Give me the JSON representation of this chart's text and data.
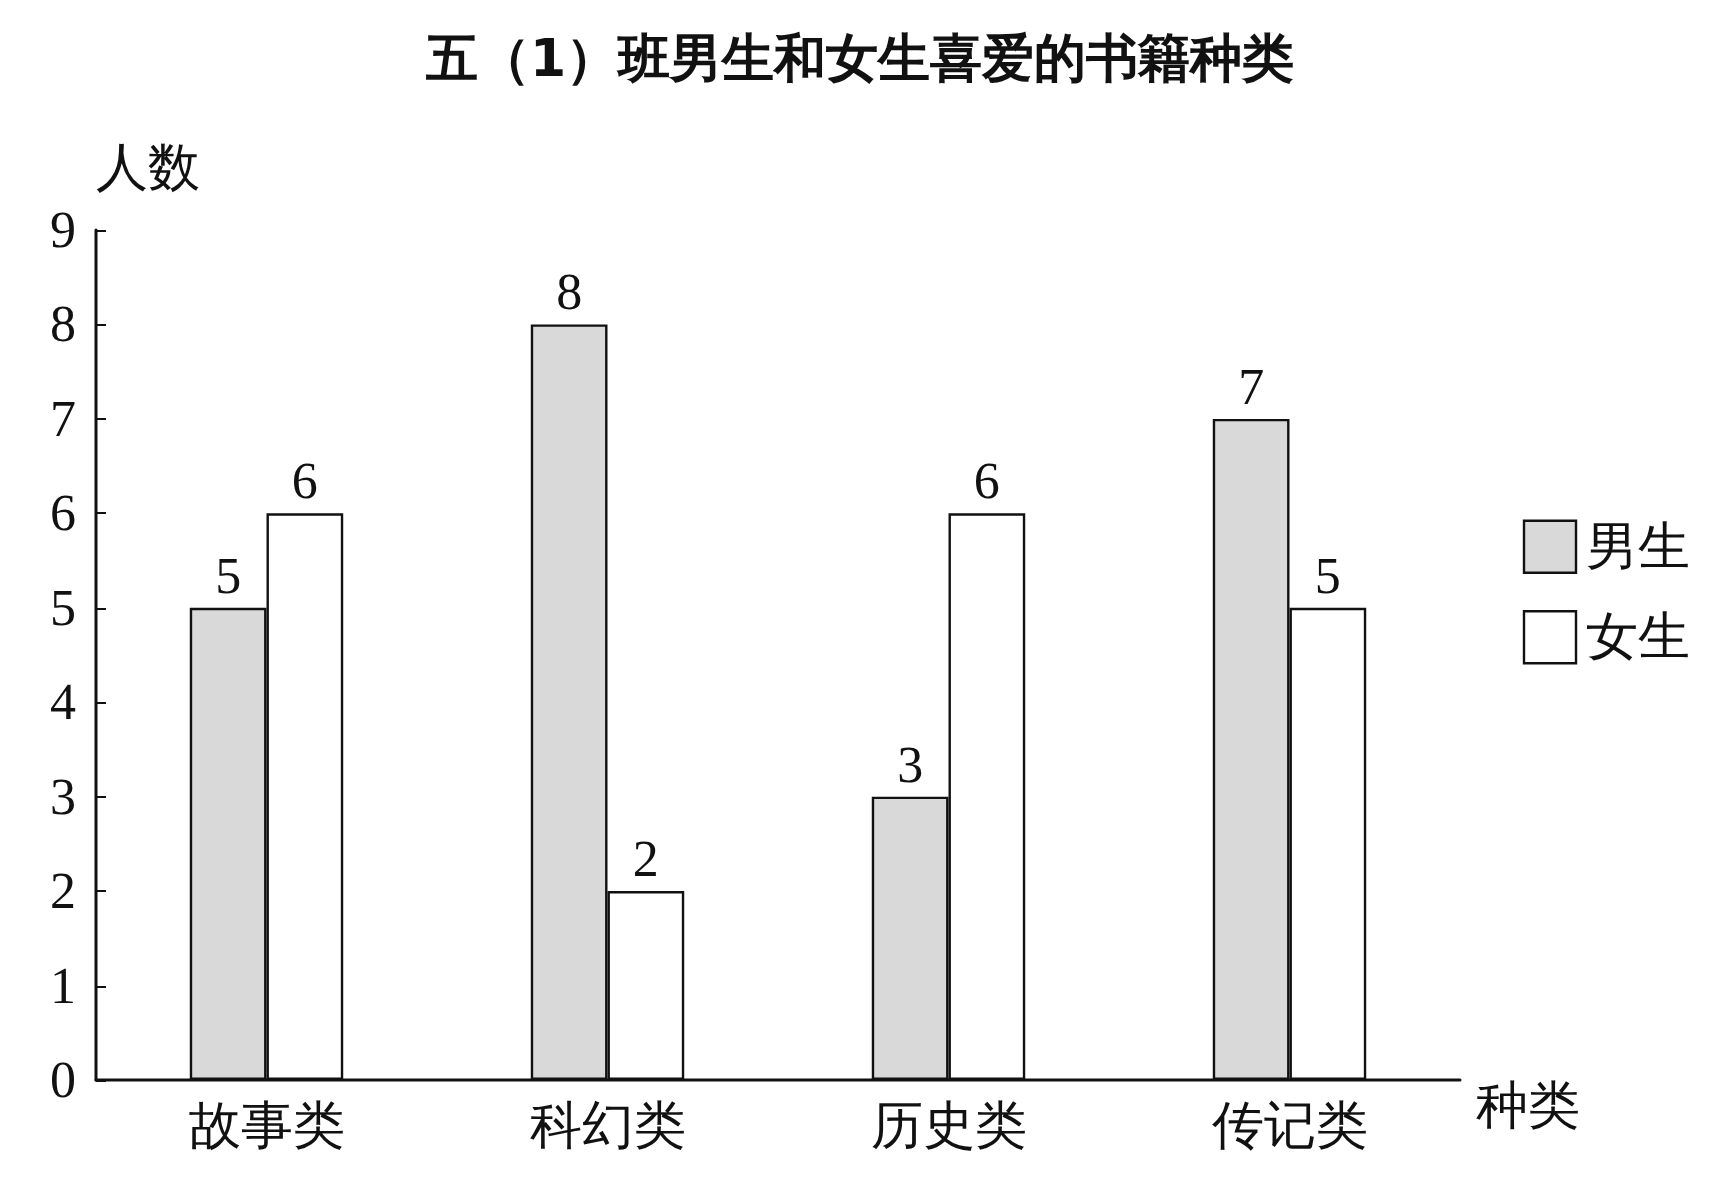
{
  "chart_data": {
    "type": "bar",
    "title": "五（1）班男生和女生喜爱的书籍种类",
    "xlabel": "种类",
    "ylabel": "人数",
    "categories": [
      "故事类",
      "科幻类",
      "历史类",
      "传记类"
    ],
    "series": [
      {
        "name": "男生",
        "color": "#d9d9d9",
        "values": [
          5,
          8,
          3,
          7
        ]
      },
      {
        "name": "女生",
        "color": "#ffffff",
        "values": [
          6,
          2,
          6,
          5
        ]
      }
    ],
    "ylim": [
      0,
      9
    ],
    "yticks": [
      0,
      1,
      2,
      3,
      4,
      5,
      6,
      7,
      8,
      9
    ],
    "grid": false,
    "legend": "right",
    "data_labels": true
  }
}
